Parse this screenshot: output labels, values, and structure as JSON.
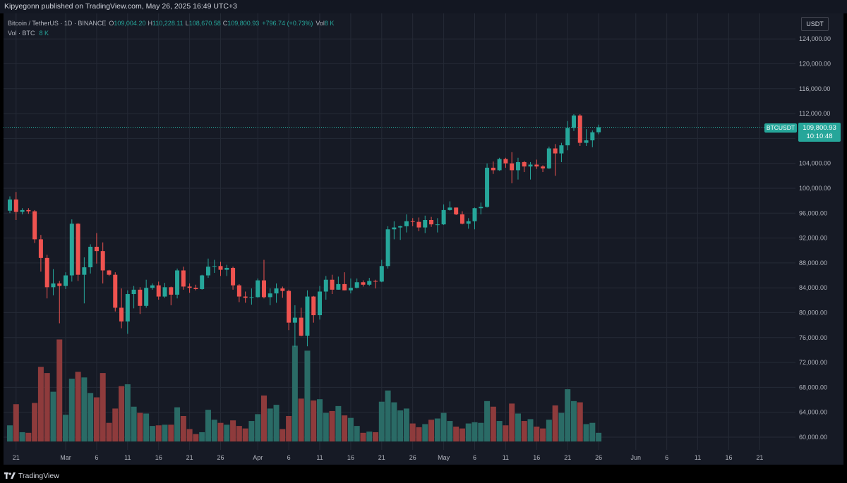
{
  "header": {
    "published_text": "Kipyegonn published on TradingView.com, May 26, 2025 16:49 UTC+3"
  },
  "legend": {
    "symbol_line": "Bitcoin / TetherUS · 1D · BINANCE",
    "open_label": "O",
    "open": "109,004.20",
    "high_label": "H",
    "high": "110,228.11",
    "low_label": "L",
    "low": "108,670.58",
    "close_label": "C",
    "close": "109,800.93",
    "change": "+796.74 (+0.73%)",
    "vol_label": "Vol",
    "vol": "8 K",
    "vol_line_label": "Vol · BTC",
    "vol_line_value": "8 K"
  },
  "currency_button": "USDT",
  "last_price": {
    "symbol": "BTCUSDT",
    "price": "109,800.93",
    "countdown": "10:10:48"
  },
  "footer": {
    "brand": "TradingView"
  },
  "colors": {
    "background": "#161a25",
    "up": "#26a69a",
    "down": "#ef5350",
    "grid": "#252a36",
    "text": "#b2b5be"
  },
  "chart_data": {
    "type": "candlestick",
    "symbol": "Bitcoin / TetherUS",
    "interval": "1D",
    "exchange": "BINANCE",
    "ylim": [
      58000,
      126000
    ],
    "y_ticks": [
      60000,
      64000,
      68000,
      72000,
      76000,
      80000,
      84000,
      88000,
      92000,
      96000,
      100000,
      104000,
      108000,
      112000,
      116000,
      120000,
      124000
    ],
    "y_tick_labels": [
      "60,000.00",
      "64,000.00",
      "68,000.00",
      "72,000.00",
      "76,000.00",
      "80,000.00",
      "84,000.00",
      "88,000.00",
      "92,000.00",
      "96,000.00",
      "100,000.00",
      "104,000.00",
      "108,000.00",
      "112,000.00",
      "116,000.00",
      "120,000.00",
      "124,000.00"
    ],
    "x_ticks": [
      {
        "index": 1,
        "label": "21"
      },
      {
        "index": 9,
        "label": "Mar"
      },
      {
        "index": 14,
        "label": "6"
      },
      {
        "index": 19,
        "label": "11"
      },
      {
        "index": 24,
        "label": "16"
      },
      {
        "index": 29,
        "label": "21"
      },
      {
        "index": 34,
        "label": "26"
      },
      {
        "index": 40,
        "label": "Apr"
      },
      {
        "index": 45,
        "label": "6"
      },
      {
        "index": 50,
        "label": "11"
      },
      {
        "index": 55,
        "label": "16"
      },
      {
        "index": 60,
        "label": "21"
      },
      {
        "index": 65,
        "label": "26"
      },
      {
        "index": 70,
        "label": "May"
      },
      {
        "index": 75,
        "label": "6"
      },
      {
        "index": 80,
        "label": "11"
      },
      {
        "index": 85,
        "label": "16"
      },
      {
        "index": 90,
        "label": "21"
      },
      {
        "index": 95,
        "label": "26"
      },
      {
        "index": 101,
        "label": "Jun"
      },
      {
        "index": 106,
        "label": "6"
      },
      {
        "index": 111,
        "label": "11"
      },
      {
        "index": 116,
        "label": "16"
      },
      {
        "index": 121,
        "label": "21"
      }
    ],
    "candles": [
      {
        "date": "2025-02-20",
        "o": 96400,
        "h": 98700,
        "l": 96000,
        "c": 98200,
        "v": 61900
      },
      {
        "date": "2025-02-21",
        "o": 98200,
        "h": 99400,
        "l": 94900,
        "c": 96200,
        "v": 65300
      },
      {
        "date": "2025-02-22",
        "o": 96200,
        "h": 96800,
        "l": 95800,
        "c": 96500,
        "v": 60800
      },
      {
        "date": "2025-02-23",
        "o": 96500,
        "h": 96800,
        "l": 95900,
        "c": 96300,
        "v": 60700
      },
      {
        "date": "2025-02-24",
        "o": 96300,
        "h": 96500,
        "l": 91200,
        "c": 91800,
        "v": 65500
      },
      {
        "date": "2025-02-25",
        "o": 91800,
        "h": 92500,
        "l": 86600,
        "c": 88800,
        "v": 71300
      },
      {
        "date": "2025-02-26",
        "o": 88800,
        "h": 89300,
        "l": 82300,
        "c": 84100,
        "v": 70300
      },
      {
        "date": "2025-02-27",
        "o": 84100,
        "h": 87000,
        "l": 82800,
        "c": 84700,
        "v": 67300
      },
      {
        "date": "2025-02-28",
        "o": 84700,
        "h": 85100,
        "l": 78300,
        "c": 84300,
        "v": 75700
      },
      {
        "date": "2025-03-01",
        "o": 84300,
        "h": 86500,
        "l": 83800,
        "c": 86000,
        "v": 63600
      },
      {
        "date": "2025-03-02",
        "o": 86000,
        "h": 95000,
        "l": 85000,
        "c": 94300,
        "v": 69400
      },
      {
        "date": "2025-03-03",
        "o": 94300,
        "h": 94400,
        "l": 85100,
        "c": 86100,
        "v": 70500
      },
      {
        "date": "2025-03-04",
        "o": 86100,
        "h": 88900,
        "l": 81500,
        "c": 87300,
        "v": 69600
      },
      {
        "date": "2025-03-05",
        "o": 87300,
        "h": 91000,
        "l": 86300,
        "c": 90600,
        "v": 67100
      },
      {
        "date": "2025-03-06",
        "o": 90600,
        "h": 92800,
        "l": 87900,
        "c": 89900,
        "v": 66400
      },
      {
        "date": "2025-03-07",
        "o": 89900,
        "h": 91300,
        "l": 84700,
        "c": 86800,
        "v": 70300
      },
      {
        "date": "2025-03-08",
        "o": 86800,
        "h": 86900,
        "l": 85900,
        "c": 86100,
        "v": 62300
      },
      {
        "date": "2025-03-09",
        "o": 86100,
        "h": 86500,
        "l": 80200,
        "c": 80800,
        "v": 64600
      },
      {
        "date": "2025-03-10",
        "o": 80800,
        "h": 83900,
        "l": 77500,
        "c": 78600,
        "v": 68200
      },
      {
        "date": "2025-03-11",
        "o": 78600,
        "h": 83600,
        "l": 76600,
        "c": 83000,
        "v": 68500
      },
      {
        "date": "2025-03-12",
        "o": 83000,
        "h": 84300,
        "l": 80700,
        "c": 83700,
        "v": 64900
      },
      {
        "date": "2025-03-13",
        "o": 83700,
        "h": 84100,
        "l": 79800,
        "c": 81100,
        "v": 63900
      },
      {
        "date": "2025-03-14",
        "o": 81100,
        "h": 85300,
        "l": 80800,
        "c": 84000,
        "v": 63800
      },
      {
        "date": "2025-03-15",
        "o": 84000,
        "h": 84700,
        "l": 83700,
        "c": 84400,
        "v": 61800
      },
      {
        "date": "2025-03-16",
        "o": 84400,
        "h": 85000,
        "l": 82100,
        "c": 82600,
        "v": 61900
      },
      {
        "date": "2025-03-17",
        "o": 82600,
        "h": 84800,
        "l": 82400,
        "c": 84100,
        "v": 62000
      },
      {
        "date": "2025-03-18",
        "o": 84100,
        "h": 84200,
        "l": 81200,
        "c": 82900,
        "v": 62000
      },
      {
        "date": "2025-03-19",
        "o": 82900,
        "h": 87100,
        "l": 82300,
        "c": 86800,
        "v": 64800
      },
      {
        "date": "2025-03-20",
        "o": 86800,
        "h": 87400,
        "l": 83700,
        "c": 84200,
        "v": 63400
      },
      {
        "date": "2025-03-21",
        "o": 84200,
        "h": 84700,
        "l": 83200,
        "c": 84000,
        "v": 61300
      },
      {
        "date": "2025-03-22",
        "o": 84000,
        "h": 84500,
        "l": 83600,
        "c": 83800,
        "v": 60500
      },
      {
        "date": "2025-03-23",
        "o": 83800,
        "h": 86100,
        "l": 83700,
        "c": 86000,
        "v": 60800
      },
      {
        "date": "2025-03-24",
        "o": 86000,
        "h": 88700,
        "l": 85600,
        "c": 87400,
        "v": 64400
      },
      {
        "date": "2025-03-25",
        "o": 87400,
        "h": 88500,
        "l": 86400,
        "c": 87500,
        "v": 62800
      },
      {
        "date": "2025-03-26",
        "o": 87500,
        "h": 88200,
        "l": 85900,
        "c": 86900,
        "v": 62300
      },
      {
        "date": "2025-03-27",
        "o": 86900,
        "h": 87700,
        "l": 85900,
        "c": 87200,
        "v": 62000
      },
      {
        "date": "2025-03-28",
        "o": 87200,
        "h": 87400,
        "l": 83700,
        "c": 84400,
        "v": 62700
      },
      {
        "date": "2025-03-29",
        "o": 84400,
        "h": 84600,
        "l": 81700,
        "c": 82600,
        "v": 61800
      },
      {
        "date": "2025-03-30",
        "o": 82600,
        "h": 83400,
        "l": 81600,
        "c": 82400,
        "v": 61400
      },
      {
        "date": "2025-03-31",
        "o": 82400,
        "h": 83900,
        "l": 81300,
        "c": 82500,
        "v": 62600
      },
      {
        "date": "2025-04-01",
        "o": 82500,
        "h": 85500,
        "l": 82400,
        "c": 85200,
        "v": 63700
      },
      {
        "date": "2025-04-02",
        "o": 85200,
        "h": 88500,
        "l": 82300,
        "c": 82500,
        "v": 66700
      },
      {
        "date": "2025-04-03",
        "o": 82500,
        "h": 83900,
        "l": 81200,
        "c": 83100,
        "v": 64600
      },
      {
        "date": "2025-04-04",
        "o": 83100,
        "h": 84700,
        "l": 81600,
        "c": 83900,
        "v": 65200
      },
      {
        "date": "2025-04-05",
        "o": 83900,
        "h": 84200,
        "l": 82400,
        "c": 83500,
        "v": 61300
      },
      {
        "date": "2025-04-06",
        "o": 83500,
        "h": 83700,
        "l": 77200,
        "c": 78400,
        "v": 63400
      },
      {
        "date": "2025-04-07",
        "o": 78400,
        "h": 81200,
        "l": 74500,
        "c": 79200,
        "v": 74700
      },
      {
        "date": "2025-04-08",
        "o": 79200,
        "h": 80800,
        "l": 76200,
        "c": 76300,
        "v": 66200
      },
      {
        "date": "2025-04-09",
        "o": 76300,
        "h": 83600,
        "l": 74600,
        "c": 82600,
        "v": 73900
      },
      {
        "date": "2025-04-10",
        "o": 82600,
        "h": 82700,
        "l": 78400,
        "c": 79600,
        "v": 65900
      },
      {
        "date": "2025-04-11",
        "o": 79600,
        "h": 84300,
        "l": 78900,
        "c": 83400,
        "v": 66100
      },
      {
        "date": "2025-04-12",
        "o": 83400,
        "h": 85900,
        "l": 82100,
        "c": 85300,
        "v": 63900
      },
      {
        "date": "2025-04-13",
        "o": 85300,
        "h": 86100,
        "l": 83000,
        "c": 83700,
        "v": 64200
      },
      {
        "date": "2025-04-14",
        "o": 83700,
        "h": 85800,
        "l": 83700,
        "c": 84600,
        "v": 65000
      },
      {
        "date": "2025-04-15",
        "o": 84600,
        "h": 86500,
        "l": 83600,
        "c": 83600,
        "v": 63500
      },
      {
        "date": "2025-04-16",
        "o": 83600,
        "h": 85500,
        "l": 83100,
        "c": 84000,
        "v": 63100
      },
      {
        "date": "2025-04-17",
        "o": 84000,
        "h": 85500,
        "l": 83900,
        "c": 84900,
        "v": 61800
      },
      {
        "date": "2025-04-18",
        "o": 84900,
        "h": 85200,
        "l": 84200,
        "c": 84500,
        "v": 60700
      },
      {
        "date": "2025-04-19",
        "o": 84500,
        "h": 85600,
        "l": 84300,
        "c": 85100,
        "v": 60900
      },
      {
        "date": "2025-04-20",
        "o": 85100,
        "h": 85300,
        "l": 83900,
        "c": 85000,
        "v": 60800
      },
      {
        "date": "2025-04-21",
        "o": 85000,
        "h": 88500,
        "l": 84900,
        "c": 87500,
        "v": 65700
      },
      {
        "date": "2025-04-22",
        "o": 87500,
        "h": 93900,
        "l": 87100,
        "c": 93400,
        "v": 67500
      },
      {
        "date": "2025-04-23",
        "o": 93400,
        "h": 94700,
        "l": 91800,
        "c": 93700,
        "v": 65600
      },
      {
        "date": "2025-04-24",
        "o": 93700,
        "h": 94000,
        "l": 91700,
        "c": 93900,
        "v": 64300
      },
      {
        "date": "2025-04-25",
        "o": 93900,
        "h": 95800,
        "l": 92900,
        "c": 94700,
        "v": 64600
      },
      {
        "date": "2025-04-26",
        "o": 94700,
        "h": 95200,
        "l": 93900,
        "c": 94600,
        "v": 62200
      },
      {
        "date": "2025-04-27",
        "o": 94600,
        "h": 95300,
        "l": 93100,
        "c": 93700,
        "v": 61600
      },
      {
        "date": "2025-04-28",
        "o": 93700,
        "h": 95600,
        "l": 92800,
        "c": 94900,
        "v": 62100
      },
      {
        "date": "2025-04-29",
        "o": 94900,
        "h": 95400,
        "l": 93800,
        "c": 94200,
        "v": 62800
      },
      {
        "date": "2025-04-30",
        "o": 94200,
        "h": 95200,
        "l": 92900,
        "c": 94200,
        "v": 63000
      },
      {
        "date": "2025-05-01",
        "o": 94200,
        "h": 97400,
        "l": 94100,
        "c": 96500,
        "v": 63900
      },
      {
        "date": "2025-05-02",
        "o": 96500,
        "h": 97900,
        "l": 96400,
        "c": 96900,
        "v": 62600
      },
      {
        "date": "2025-05-03",
        "o": 96900,
        "h": 96900,
        "l": 95700,
        "c": 95800,
        "v": 61700
      },
      {
        "date": "2025-05-04",
        "o": 95800,
        "h": 96300,
        "l": 94200,
        "c": 94300,
        "v": 61400
      },
      {
        "date": "2025-05-05",
        "o": 94300,
        "h": 95200,
        "l": 93500,
        "c": 94700,
        "v": 62200
      },
      {
        "date": "2025-05-06",
        "o": 94700,
        "h": 96900,
        "l": 93400,
        "c": 96800,
        "v": 62400
      },
      {
        "date": "2025-05-07",
        "o": 96800,
        "h": 97700,
        "l": 95800,
        "c": 97000,
        "v": 62300
      },
      {
        "date": "2025-05-08",
        "o": 97000,
        "h": 104000,
        "l": 96900,
        "c": 103300,
        "v": 65800
      },
      {
        "date": "2025-05-09",
        "o": 103300,
        "h": 104300,
        "l": 102300,
        "c": 102900,
        "v": 64900
      },
      {
        "date": "2025-05-10",
        "o": 102900,
        "h": 104900,
        "l": 102800,
        "c": 104700,
        "v": 62600
      },
      {
        "date": "2025-05-11",
        "o": 104700,
        "h": 104900,
        "l": 103300,
        "c": 104000,
        "v": 61900
      },
      {
        "date": "2025-05-12",
        "o": 104000,
        "h": 105800,
        "l": 100800,
        "c": 102900,
        "v": 65400
      },
      {
        "date": "2025-05-13",
        "o": 102900,
        "h": 104900,
        "l": 101400,
        "c": 104200,
        "v": 63800
      },
      {
        "date": "2025-05-14",
        "o": 104200,
        "h": 104400,
        "l": 102600,
        "c": 103500,
        "v": 62600
      },
      {
        "date": "2025-05-15",
        "o": 103500,
        "h": 104200,
        "l": 101400,
        "c": 103800,
        "v": 62900
      },
      {
        "date": "2025-05-16",
        "o": 103800,
        "h": 104600,
        "l": 103100,
        "c": 103500,
        "v": 61700
      },
      {
        "date": "2025-05-17",
        "o": 103500,
        "h": 103700,
        "l": 102600,
        "c": 103200,
        "v": 61400
      },
      {
        "date": "2025-05-18",
        "o": 103200,
        "h": 106700,
        "l": 103100,
        "c": 106400,
        "v": 62800
      },
      {
        "date": "2025-05-19",
        "o": 106400,
        "h": 107100,
        "l": 102000,
        "c": 105600,
        "v": 65100
      },
      {
        "date": "2025-05-20",
        "o": 105600,
        "h": 107300,
        "l": 104200,
        "c": 106900,
        "v": 63900
      },
      {
        "date": "2025-05-21",
        "o": 106900,
        "h": 110800,
        "l": 106100,
        "c": 109700,
        "v": 67700
      },
      {
        "date": "2025-05-22",
        "o": 109700,
        "h": 111900,
        "l": 109200,
        "c": 111700,
        "v": 65800
      },
      {
        "date": "2025-05-23",
        "o": 111700,
        "h": 111900,
        "l": 106800,
        "c": 107300,
        "v": 65600
      },
      {
        "date": "2025-05-24",
        "o": 107300,
        "h": 109500,
        "l": 106800,
        "c": 107700,
        "v": 62100
      },
      {
        "date": "2025-05-25",
        "o": 107700,
        "h": 109300,
        "l": 106600,
        "c": 109000,
        "v": 62300
      },
      {
        "date": "2025-05-26",
        "o": 109004.2,
        "h": 110228.11,
        "l": 108670.58,
        "c": 109800.93,
        "v": 60700
      }
    ]
  }
}
